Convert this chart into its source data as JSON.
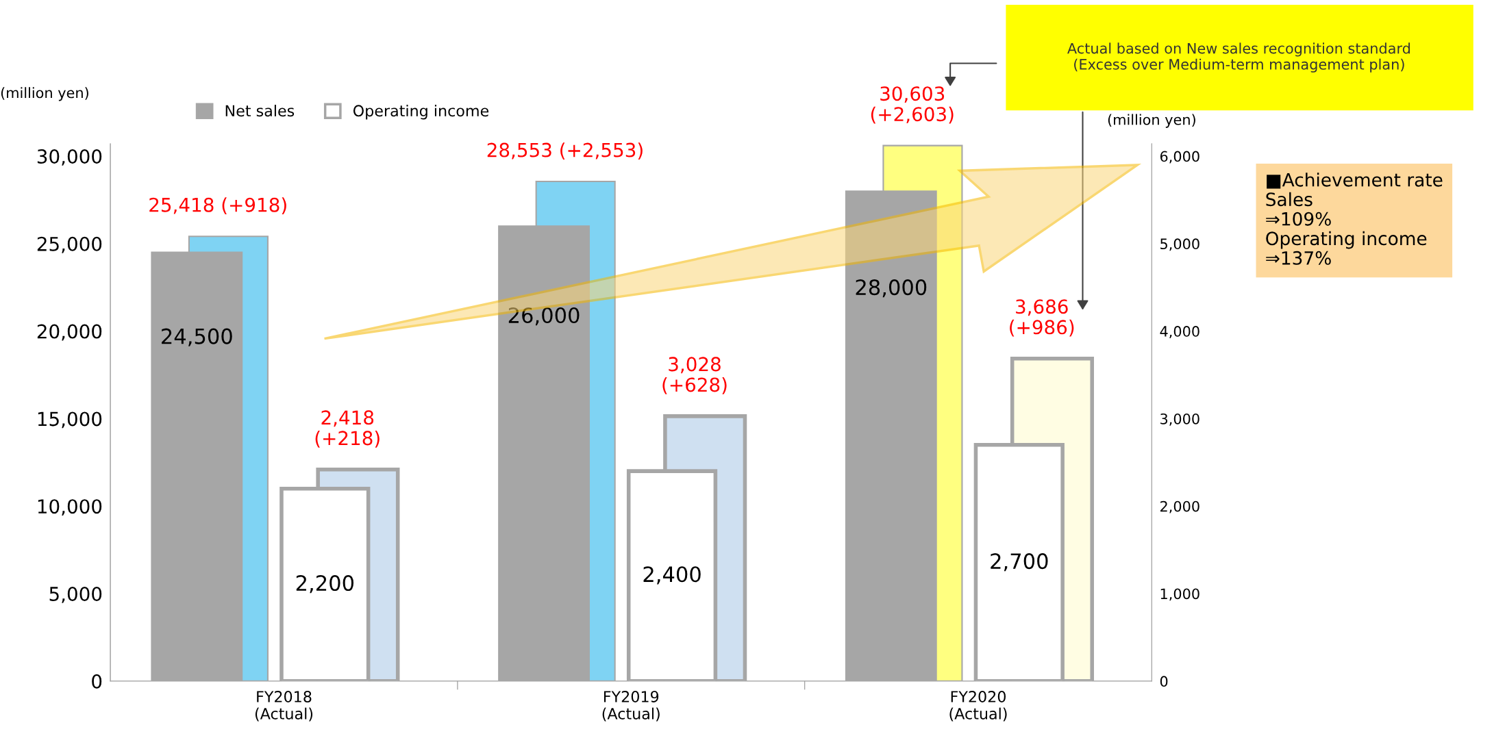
{
  "chart_data": {
    "type": "bar",
    "categories": [
      "FY2018\n(Actual)",
      "FY2019\n(Actual)",
      "FY2020\n(Actual)"
    ],
    "series": [
      {
        "name": "Net sales",
        "color": "#a6a6a6",
        "values": [
          24500,
          26000,
          28000
        ],
        "value_labels": [
          "24,500",
          "26,000",
          "28,000"
        ]
      },
      {
        "colors": [
          "#7fd3f3",
          "#7fd3f3",
          "#ffff80"
        ],
        "values": [
          25418,
          28553,
          30603
        ],
        "value_labels": [
          "25,418 (+918)",
          "28,553 (+2,553)",
          "30,603\n(+2,603)"
        ]
      },
      {
        "name": "Operating income",
        "color": "#ffffff",
        "axis": "y2",
        "values": [
          2200,
          2400,
          2700
        ],
        "value_labels": [
          "2,200",
          "2,400",
          "2,700"
        ]
      },
      {
        "colors": [
          "#cfe0f1",
          "#cfe0f1",
          "#fffde3"
        ],
        "axis": "y2",
        "values": [
          2418,
          3028,
          3686
        ],
        "value_labels": [
          "2,418\n(+218)",
          "3,028\n(+628)",
          "3,686\n(+986)"
        ]
      }
    ],
    "ylabel": "(million yen)",
    "y2label": "(million yen)",
    "ylim": [
      0,
      30700
    ],
    "yticks": [
      {
        "value": 0,
        "label": "0"
      },
      {
        "value": 5000,
        "label": "5,000"
      },
      {
        "value": 10000,
        "label": "10,000"
      },
      {
        "value": 15000,
        "label": "15,000"
      },
      {
        "value": 20000,
        "label": "20,000"
      },
      {
        "value": 25000,
        "label": "25,000"
      },
      {
        "value": 30000,
        "label": "30,000"
      }
    ],
    "y2lim": [
      0,
      6140
    ],
    "y2ticks": [
      {
        "value": 0,
        "label": "0"
      },
      {
        "value": 1000,
        "label": "1,000"
      },
      {
        "value": 2000,
        "label": "2,000"
      },
      {
        "value": 3000,
        "label": "3,000"
      },
      {
        "value": 4000,
        "label": "4,000"
      },
      {
        "value": 5000,
        "label": "5,000"
      },
      {
        "value": 6000,
        "label": "6,000"
      }
    ],
    "legend": "top",
    "grid": false,
    "annotations": [
      "Actual based on New sales recognition standard\n(Excess over Medium-term management plan)",
      "■Achievement rate\nSales\n⇒109%\nOperating income\n⇒137%"
    ]
  }
}
